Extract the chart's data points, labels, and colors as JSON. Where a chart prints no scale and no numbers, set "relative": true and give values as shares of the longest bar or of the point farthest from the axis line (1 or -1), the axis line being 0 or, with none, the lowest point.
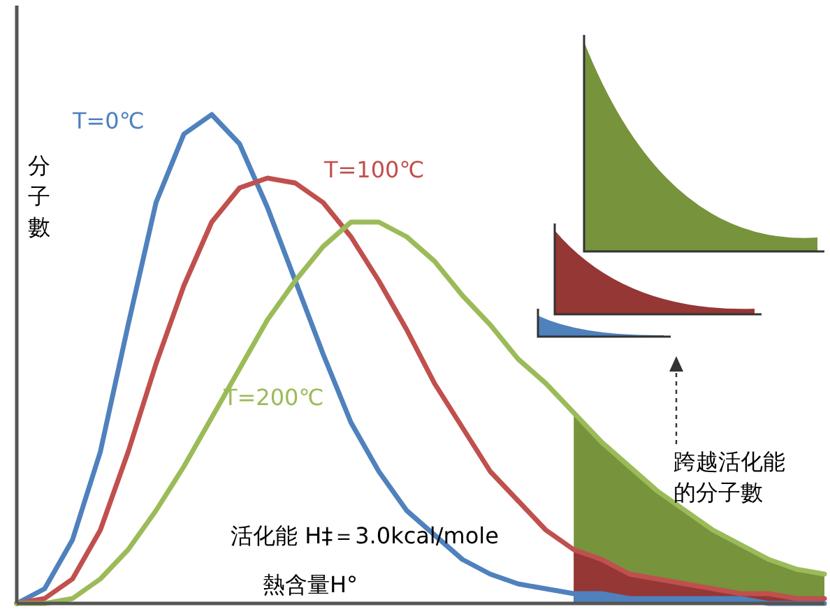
{
  "chart_data": {
    "type": "line",
    "relative": true,
    "marker": "none",
    "line_style": "solid",
    "ylabel": "分子數",
    "xlabel": "熱含量H°",
    "annotations": [
      "活化能 H‡＝3.0kcal/mole",
      "跨越活化能的分子數"
    ],
    "categories": [
      null,
      null,
      null,
      null,
      null,
      null,
      null,
      null,
      null,
      null,
      null,
      null,
      null,
      null,
      null,
      null,
      null,
      null,
      null,
      null,
      null,
      null,
      null,
      null,
      null,
      null,
      null,
      null,
      null,
      null
    ],
    "series": [
      {
        "name": "T=0℃",
        "color": "#4f81bd",
        "values": [
          0,
          0.03,
          0.13,
          0.31,
          0.57,
          0.82,
          0.96,
          1,
          0.94,
          0.81,
          0.66,
          0.51,
          0.37,
          0.27,
          0.19,
          0.14,
          0.09,
          0.06,
          0.04,
          0.03,
          0.02,
          0.02,
          0.01,
          0.01,
          0.01,
          0.01,
          0.01,
          0.0,
          0.0,
          0.0
        ]
      },
      {
        "name": "T=100℃",
        "color": "#c0504d",
        "values": [
          0,
          0.01,
          0.05,
          0.15,
          0.31,
          0.49,
          0.65,
          0.78,
          0.85,
          0.87,
          0.86,
          0.82,
          0.75,
          0.66,
          0.56,
          0.45,
          0.36,
          0.27,
          0.21,
          0.15,
          0.11,
          0.09,
          0.06,
          0.05,
          0.04,
          0.03,
          0.02,
          0.02,
          0.01,
          0.01
        ]
      },
      {
        "name": "T=200℃",
        "color": "#9bbb59",
        "values": [
          0,
          0.0,
          0.01,
          0.05,
          0.11,
          0.19,
          0.28,
          0.38,
          0.48,
          0.58,
          0.66,
          0.73,
          0.78,
          0.78,
          0.75,
          0.7,
          0.63,
          0.57,
          0.5,
          0.45,
          0.39,
          0.33,
          0.28,
          0.23,
          0.19,
          0.15,
          0.12,
          0.09,
          0.07,
          0.06
        ]
      }
    ]
  }
}
